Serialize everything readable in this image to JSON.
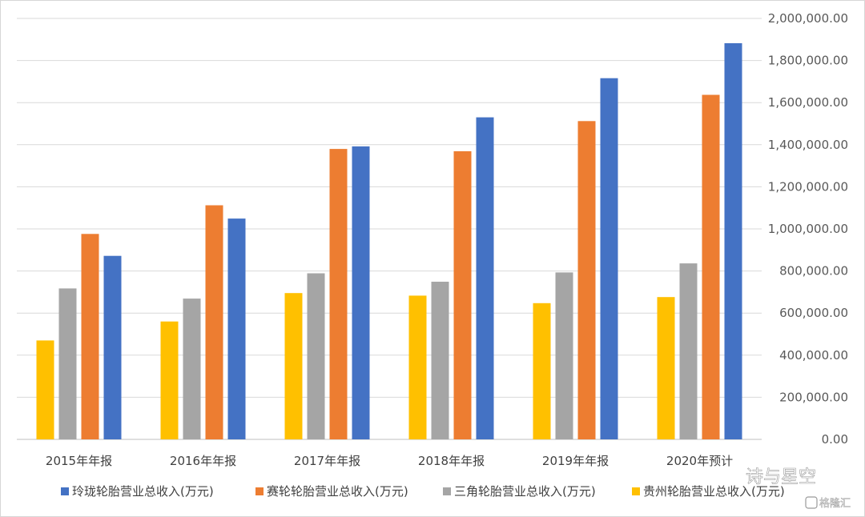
{
  "chart_data": {
    "type": "bar",
    "categories": [
      "2015年年报",
      "2016年年报",
      "2017年年报",
      "2018年年报",
      "2019年年报",
      "2020年预计"
    ],
    "series": [
      {
        "name": "贵州轮胎营业总收入(万元)",
        "color": "#FFC000",
        "values": [
          470000,
          560000,
          695000,
          683000,
          647000,
          676000
        ]
      },
      {
        "name": "三角轮胎营业总收入(万元)",
        "color": "#A5A5A5",
        "values": [
          717000,
          669000,
          789000,
          749000,
          793000,
          836000
        ]
      },
      {
        "name": "赛轮轮胎营业总收入(万元)",
        "color": "#ED7D31",
        "values": [
          976000,
          1112000,
          1380000,
          1369000,
          1512000,
          1637000
        ]
      },
      {
        "name": "玲珑轮胎营业总收入(万元)",
        "color": "#4472C4",
        "values": [
          872000,
          1049000,
          1392000,
          1530000,
          1716000,
          1882000
        ]
      }
    ],
    "legend_order": [
      "玲珑轮胎营业总收入(万元)",
      "赛轮轮胎营业总收入(万元)",
      "三角轮胎营业总收入(万元)",
      "贵州轮胎营业总收入(万元)"
    ],
    "yticks": [
      "0.00",
      "200,000.00",
      "400,000.00",
      "600,000.00",
      "800,000.00",
      "1,000,000.00",
      "1,200,000.00",
      "1,400,000.00",
      "1,600,000.00",
      "1,800,000.00",
      "2,000,000.00"
    ],
    "ylim": [
      0,
      2000000
    ],
    "y_axis_side": "right",
    "grid": true,
    "legend_position": "bottom"
  },
  "watermark": {
    "main": "诗与星空",
    "secondary": "格隆汇"
  }
}
